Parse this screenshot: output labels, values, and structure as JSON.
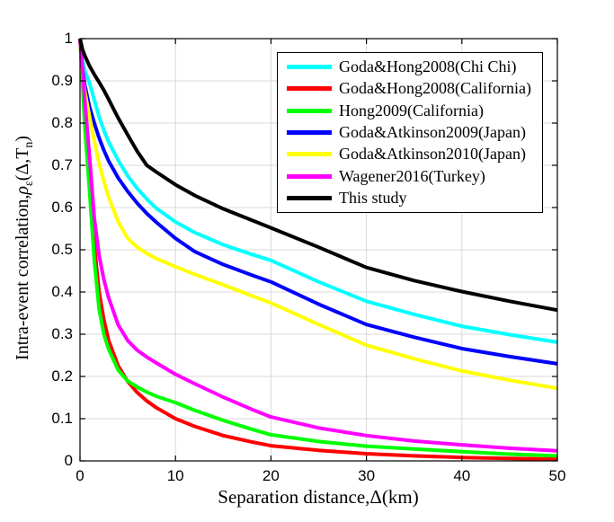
{
  "figure": {
    "background": "#ffffff",
    "axis_color": "#000000",
    "grid_color": "#d9d9d9",
    "line_width": 4
  },
  "axes": {
    "xlabel": "Separation distance,Δ(km)",
    "ylabel": {
      "prefix": "Intra-event correlation,",
      "rho": "ρ",
      "rho_sub": "ε",
      "mid": "(Δ,T",
      "n_sub": "n",
      "suffix": ")"
    }
  },
  "legend": {
    "position": "top-right",
    "entries": [
      {
        "label": "Goda&Hong2008(Chi Chi)",
        "color": "#00ffff"
      },
      {
        "label": "Goda&Hong2008(California)",
        "color": "#ff0000"
      },
      {
        "label": "Hong2009(California)",
        "color": "#00ff00"
      },
      {
        "label": "Goda&Atkinson2009(Japan)",
        "color": "#0000ff"
      },
      {
        "label": "Goda&Atkinson2010(Japan)",
        "color": "#ffff00"
      },
      {
        "label": "Wagener2016(Turkey)",
        "color": "#ff00ff"
      },
      {
        "label": "This study",
        "color": "#000000"
      }
    ]
  },
  "chart_data": {
    "type": "line",
    "title": "",
    "xlabel": "Separation distance,Δ(km)",
    "ylabel": "Intra-event correlation,ρ_ε(Δ,T_n)",
    "xlim": [
      0,
      50
    ],
    "ylim": [
      0,
      1
    ],
    "x_ticks": [
      0,
      10,
      20,
      30,
      40,
      50
    ],
    "y_ticks": [
      0,
      0.1,
      0.2,
      0.3,
      0.4,
      0.5,
      0.6,
      0.7,
      0.8,
      0.9,
      1
    ],
    "grid": true,
    "legend_position": "top-right",
    "x": [
      0,
      0.25,
      0.5,
      1,
      1.5,
      2,
      2.5,
      3,
      4,
      5,
      6,
      7,
      8,
      10,
      12,
      15,
      18,
      20,
      25,
      30,
      35,
      40,
      45,
      50
    ],
    "series": [
      {
        "name": "Goda&Hong2008(Chi Chi)",
        "color": "#00ffff",
        "values": [
          1,
          0.95,
          0.925,
          0.895,
          0.855,
          0.815,
          0.783,
          0.755,
          0.712,
          0.675,
          0.645,
          0.62,
          0.598,
          0.566,
          0.541,
          0.512,
          0.489,
          0.475,
          0.424,
          0.378,
          0.347,
          0.319,
          0.299,
          0.281
        ]
      },
      {
        "name": "Goda&Hong2008(California)",
        "color": "#ff0000",
        "values": [
          1,
          0.91,
          0.8,
          0.66,
          0.51,
          0.4,
          0.335,
          0.285,
          0.225,
          0.188,
          0.162,
          0.142,
          0.126,
          0.1,
          0.082,
          0.06,
          0.045,
          0.036,
          0.025,
          0.017,
          0.012,
          0.008,
          0.006,
          0.004
        ]
      },
      {
        "name": "Hong2009(California)",
        "color": "#00ff00",
        "values": [
          1,
          0.9,
          0.79,
          0.64,
          0.475,
          0.36,
          0.3,
          0.264,
          0.215,
          0.189,
          0.175,
          0.163,
          0.153,
          0.138,
          0.12,
          0.096,
          0.075,
          0.062,
          0.046,
          0.035,
          0.028,
          0.022,
          0.016,
          0.012
        ]
      },
      {
        "name": "Goda&Atkinson2009(Japan)",
        "color": "#0000ff",
        "values": [
          1,
          0.93,
          0.89,
          0.838,
          0.8,
          0.765,
          0.736,
          0.71,
          0.67,
          0.638,
          0.61,
          0.586,
          0.565,
          0.527,
          0.496,
          0.465,
          0.44,
          0.424,
          0.371,
          0.323,
          0.293,
          0.266,
          0.247,
          0.23
        ]
      },
      {
        "name": "Goda&Atkinson2010(Japan)",
        "color": "#ffff00",
        "values": [
          1,
          0.92,
          0.875,
          0.815,
          0.757,
          0.705,
          0.662,
          0.625,
          0.566,
          0.527,
          0.506,
          0.491,
          0.479,
          0.46,
          0.442,
          0.417,
          0.391,
          0.374,
          0.323,
          0.274,
          0.242,
          0.213,
          0.191,
          0.172
        ]
      },
      {
        "name": "Wagener2016(Turkey)",
        "color": "#ff00ff",
        "values": [
          1,
          0.93,
          0.855,
          0.72,
          0.575,
          0.487,
          0.43,
          0.386,
          0.322,
          0.285,
          0.262,
          0.246,
          0.232,
          0.205,
          0.183,
          0.151,
          0.122,
          0.104,
          0.078,
          0.06,
          0.047,
          0.038,
          0.03,
          0.024
        ]
      },
      {
        "name": "This study",
        "color": "#000000",
        "values": [
          1,
          0.975,
          0.96,
          0.935,
          0.915,
          0.897,
          0.878,
          0.856,
          0.812,
          0.772,
          0.733,
          0.7,
          0.684,
          0.654,
          0.629,
          0.597,
          0.57,
          0.552,
          0.506,
          0.458,
          0.427,
          0.401,
          0.378,
          0.357
        ]
      }
    ]
  }
}
